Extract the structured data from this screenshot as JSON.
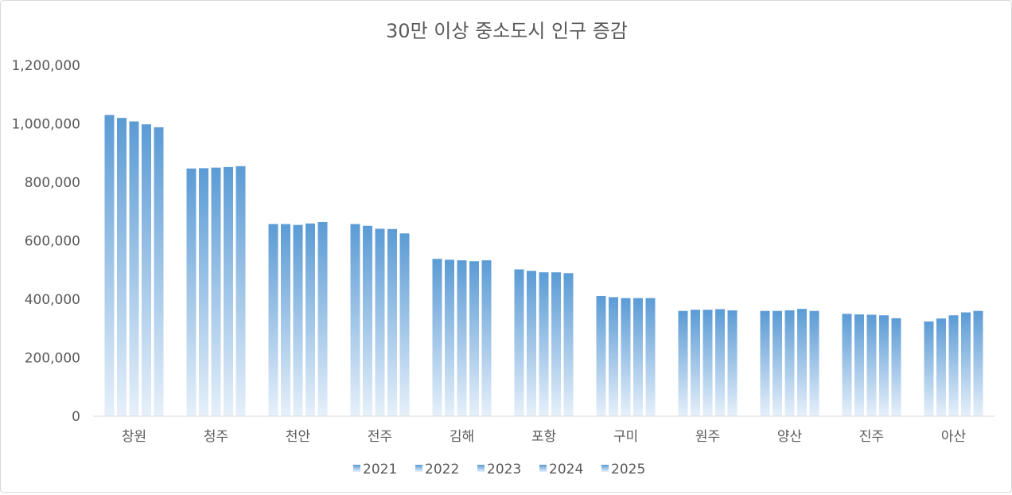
{
  "chart_data": {
    "type": "bar",
    "title": "30만 이상 중소도시 인구 증감",
    "categories": [
      "창원",
      "청주",
      "천안",
      "전주",
      "김해",
      "포항",
      "구미",
      "원주",
      "양산",
      "진주",
      "아산"
    ],
    "series": [
      {
        "name": "2021",
        "values": [
          1030000,
          847000,
          657000,
          657000,
          538000,
          502000,
          411000,
          360000,
          360000,
          350000,
          324000
        ]
      },
      {
        "name": "2022",
        "values": [
          1020000,
          848000,
          657000,
          651000,
          535000,
          497000,
          407000,
          364000,
          360000,
          348000,
          334000
        ]
      },
      {
        "name": "2023",
        "values": [
          1008000,
          850000,
          654000,
          641000,
          533000,
          492000,
          404000,
          364000,
          362000,
          347000,
          345000
        ]
      },
      {
        "name": "2024",
        "values": [
          998000,
          852000,
          659000,
          640000,
          530000,
          492000,
          404000,
          366000,
          367000,
          345000,
          355000
        ]
      },
      {
        "name": "2025",
        "values": [
          988000,
          855000,
          664000,
          625000,
          533000,
          489000,
          404000,
          362000,
          360000,
          335000,
          360000
        ]
      }
    ],
    "y_tick_labels": [
      "0",
      "200,000",
      "400,000",
      "600,000",
      "800,000",
      "1,000,000",
      "1,200,000"
    ],
    "ylim": [
      0,
      1200000
    ],
    "grid": false,
    "legend_position": "bottom",
    "colors": {
      "bar_top": "#5b9bd5",
      "bar_bottom": "#e6f0fa",
      "axis": "#d9d9d9",
      "text": "#595959"
    }
  }
}
